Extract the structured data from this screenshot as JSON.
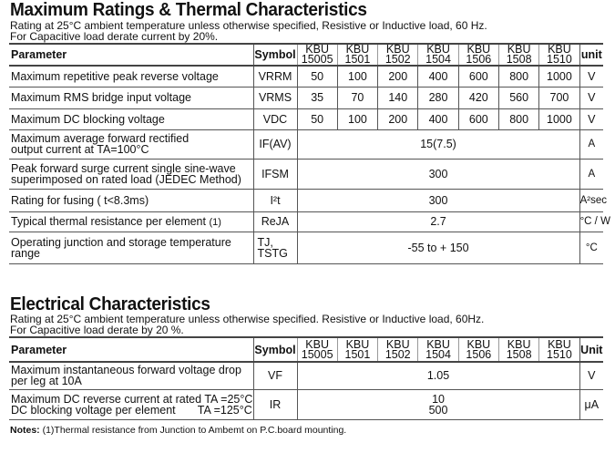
{
  "max_ratings": {
    "title": "Maximum Ratings & Thermal Characteristics",
    "subtitle_line1": "Rating at 25°C ambient temperature unless otherwise specified, Resistive or Inductive load, 60 Hz.",
    "subtitle_line2": "For Capacitive load derate current by 20%.",
    "headers": {
      "parameter": "Parameter",
      "symbol": "Symbol",
      "unit": "unit"
    },
    "models": [
      [
        "KBU",
        "15005"
      ],
      [
        "KBU",
        "1501"
      ],
      [
        "KBU",
        "1502"
      ],
      [
        "KBU",
        "1504"
      ],
      [
        "KBU",
        "1506"
      ],
      [
        "KBU",
        "1508"
      ],
      [
        "KBU",
        "1510"
      ]
    ],
    "rows_per_model": [
      {
        "parameter": "Maximum repetitive peak reverse voltage",
        "symbol": "VRRM",
        "values": [
          "50",
          "100",
          "200",
          "400",
          "600",
          "800",
          "1000"
        ],
        "unit": "V"
      },
      {
        "parameter": "Maximum RMS bridge input voltage",
        "symbol": "VRMS",
        "values": [
          "35",
          "70",
          "140",
          "280",
          "420",
          "560",
          "700"
        ],
        "unit": "V"
      },
      {
        "parameter": "Maximum DC blocking voltage",
        "symbol": "VDC",
        "values": [
          "50",
          "100",
          "200",
          "400",
          "600",
          "800",
          "1000"
        ],
        "unit": "V"
      }
    ],
    "rows_common": [
      {
        "parameter": "Maximum average forward rectified",
        "parameter2": "output current at TA=100°C",
        "symbol": "IF(AV)",
        "value": "15(7.5)",
        "unit": "A"
      },
      {
        "parameter": "Peak forward surge current single sine-wave",
        "parameter2": "superimposed on rated load (JEDEC Method)",
        "symbol": "IFSM",
        "value": "300",
        "unit": "A"
      },
      {
        "parameter": "Rating for fusing ( t<8.3ms)",
        "parameter2": "",
        "symbol": "I²t",
        "value": "300",
        "unit": "A²sec"
      },
      {
        "parameter": "Typical  thermal resistance per element",
        "note": "(1)",
        "parameter2": "",
        "symbol": "ReJA",
        "value": "2.7",
        "unit": "°C / W"
      },
      {
        "parameter": "Operating junction and storage temperature",
        "parameter2": "range",
        "symbol": "TJ,",
        "symbol2": "TSTG",
        "value": "-55 to + 150",
        "unit": "°C"
      }
    ]
  },
  "electrical": {
    "title": "Electrical Characteristics",
    "subtitle_line1": "Rating at 25°C ambient temperature unless otherwise specified. Resistive or Inductive load, 60Hz.",
    "subtitle_line2": "For Capacitive load derate by 20 %.",
    "headers": {
      "parameter": "Parameter",
      "symbol": "Symbol",
      "unit": "Unit"
    },
    "rows": [
      {
        "parameter": "Maximum instantaneous forward voltage drop",
        "parameter2": "per leg at 10A",
        "symbol": "VF",
        "value": "1.05",
        "unit": "V"
      },
      {
        "parameter": "Maximum DC reverse current at rated  TA =25°C",
        "parameter2": "DC blocking voltage per element       TA =125°C",
        "symbol": "IR",
        "value": "10",
        "value2": "500",
        "unit": "μA"
      }
    ]
  },
  "notes": {
    "label": "Notes:",
    "text": " (1)Thermal resistance from Junction to Ambemt on P.C.board mounting."
  }
}
